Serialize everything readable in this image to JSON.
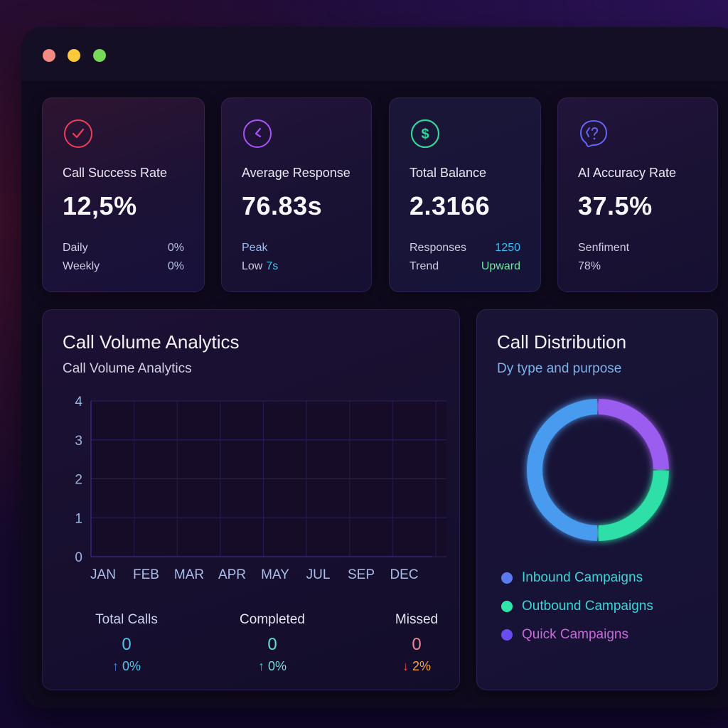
{
  "window": {
    "controls": [
      "close",
      "minimize",
      "maximize"
    ]
  },
  "stats": [
    {
      "icon": "check-circle-icon",
      "icon_color": "#e8405a",
      "title": "Call Success Rate",
      "value": "12,5%",
      "rows": [
        {
          "label": "Daily",
          "value": "0%"
        },
        {
          "label": "Weekly",
          "value": "0%"
        }
      ]
    },
    {
      "icon": "clock-icon",
      "icon_color": "#a855f7",
      "title": "Average Response",
      "value": "76.83s",
      "rows": [
        {
          "label": "Peak",
          "value": ""
        },
        {
          "label": "Low",
          "value": "7s"
        }
      ]
    },
    {
      "icon": "dollar-circle-icon",
      "icon_color": "#34d399",
      "title": "Total Balance",
      "value": "2.3166",
      "rows": [
        {
          "label": "Responses",
          "value": "1250"
        },
        {
          "label": "Trend",
          "value": "Upward"
        }
      ]
    },
    {
      "icon": "ai-question-icon",
      "icon_color": "#6366f1",
      "title": "AI Accuracy Rate",
      "value": "37.5%",
      "rows": [
        {
          "label": "Senfiment",
          "value": ""
        },
        {
          "label": "78%",
          "value": ""
        }
      ]
    }
  ],
  "volume": {
    "title": "Call Volume Analytics",
    "subtitle": "Call Volume Analytics",
    "summary": [
      {
        "label": "Total Calls",
        "value": "0",
        "change": "0%",
        "direction": "up"
      },
      {
        "label": "Completed",
        "value": "0",
        "change": "0%",
        "direction": "up"
      },
      {
        "label": "Missed",
        "value": "0",
        "change": "2%",
        "direction": "down"
      }
    ]
  },
  "distribution": {
    "title": "Call Distribution",
    "subtitle": "Dy type and purpose",
    "legend": [
      {
        "label": "Inbound Campaigns",
        "color": "#5b7cf0",
        "text_color": "#3ed3d6"
      },
      {
        "label": "Outbound Campaigns",
        "color": "#2ee6a8",
        "text_color": "#3ed3d6"
      },
      {
        "label": "Quick Campaigns",
        "color": "#6b4cf0",
        "text_color": "#c76ad8"
      }
    ]
  },
  "chart_data": [
    {
      "type": "line",
      "title": "Call Volume Analytics",
      "xlabel": "",
      "ylabel": "",
      "categories": [
        "JAN",
        "FEB",
        "MAR",
        "APR",
        "MAY",
        "JUL",
        "SEP",
        "DEC"
      ],
      "series": [],
      "yticks": [
        0,
        1,
        2,
        3,
        4
      ],
      "ylim": [
        0,
        4
      ],
      "grid": true
    },
    {
      "type": "pie",
      "title": "Call Distribution",
      "subtitle": "Dy type and purpose",
      "donut": true,
      "labels": [
        "Inbound Campaigns",
        "Outbound Campaigns",
        "Quick Campaigns"
      ],
      "values": [
        50,
        25,
        25
      ],
      "colors": [
        "#4a9bf0",
        "#2ee0a8",
        "#9b5cf0"
      ],
      "legend": "bottom"
    }
  ]
}
